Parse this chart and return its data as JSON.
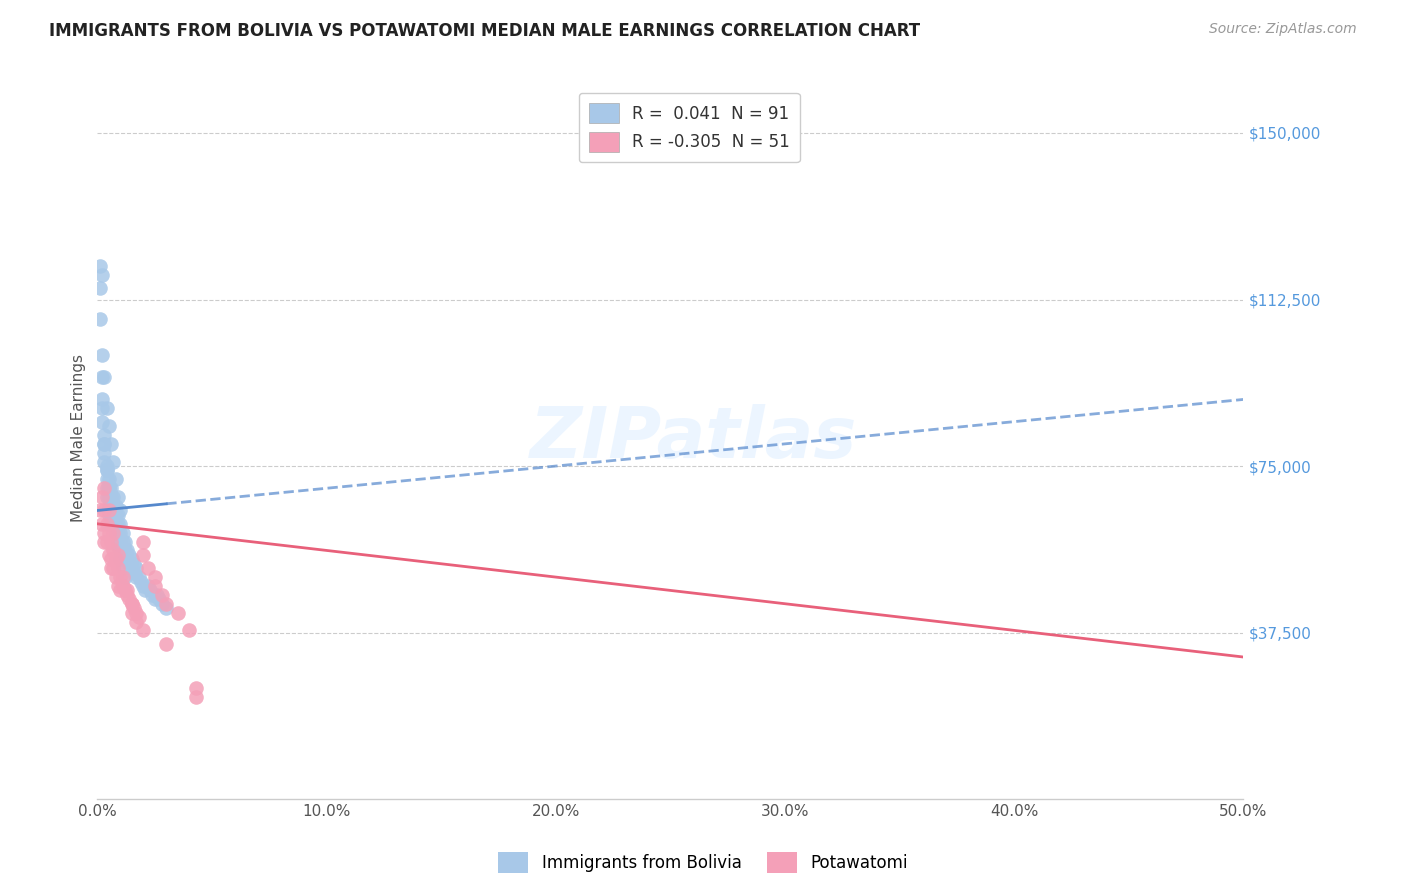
{
  "title": "IMMIGRANTS FROM BOLIVIA VS POTAWATOMI MEDIAN MALE EARNINGS CORRELATION CHART",
  "source": "Source: ZipAtlas.com",
  "ylabel": "Median Male Earnings",
  "ytick_labels": [
    "$37,500",
    "$75,000",
    "$112,500",
    "$150,000"
  ],
  "ytick_values": [
    37500,
    75000,
    112500,
    150000
  ],
  "ylim": [
    0,
    162500
  ],
  "xlim": [
    0.0,
    0.5
  ],
  "xticks": [
    0.0,
    0.1,
    0.2,
    0.3,
    0.4,
    0.5
  ],
  "xtick_labels": [
    "0.0%",
    "10.0%",
    "20.0%",
    "30.0%",
    "40.0%",
    "50.0%"
  ],
  "legend1_r": "0.041",
  "legend1_n": "91",
  "legend2_r": "-0.305",
  "legend2_n": "51",
  "series1_name": "Immigrants from Bolivia",
  "series2_name": "Potawatomi",
  "color1": "#a8c8e8",
  "color2": "#f4a0b8",
  "trend1_color": "#5588cc",
  "trend2_color": "#e8607a",
  "watermark": "ZIPatlas",
  "bolivia_x": [
    0.001,
    0.001,
    0.002,
    0.002,
    0.002,
    0.002,
    0.003,
    0.003,
    0.003,
    0.003,
    0.004,
    0.004,
    0.004,
    0.004,
    0.004,
    0.005,
    0.005,
    0.005,
    0.005,
    0.005,
    0.005,
    0.006,
    0.006,
    0.006,
    0.006,
    0.006,
    0.007,
    0.007,
    0.007,
    0.007,
    0.008,
    0.008,
    0.008,
    0.008,
    0.009,
    0.009,
    0.009,
    0.009,
    0.01,
    0.01,
    0.01,
    0.01,
    0.011,
    0.011,
    0.011,
    0.012,
    0.012,
    0.012,
    0.013,
    0.013,
    0.014,
    0.014,
    0.015,
    0.015,
    0.016,
    0.016,
    0.017,
    0.017,
    0.018,
    0.019,
    0.02,
    0.021,
    0.022,
    0.023,
    0.024,
    0.025,
    0.026,
    0.027,
    0.028,
    0.03,
    0.001,
    0.002,
    0.003,
    0.004,
    0.005,
    0.006,
    0.007,
    0.008,
    0.009,
    0.01,
    0.002,
    0.003,
    0.004,
    0.005,
    0.006,
    0.007,
    0.008,
    0.009,
    0.01,
    0.011,
    0.012
  ],
  "bolivia_y": [
    115000,
    108000,
    100000,
    95000,
    90000,
    85000,
    82000,
    80000,
    78000,
    76000,
    75000,
    74000,
    72000,
    70000,
    68000,
    72000,
    70000,
    68000,
    66000,
    64000,
    62000,
    70000,
    68000,
    66000,
    64000,
    62000,
    68000,
    66000,
    64000,
    62000,
    66000,
    64000,
    62000,
    60000,
    64000,
    62000,
    60000,
    58000,
    62000,
    60000,
    58000,
    56000,
    60000,
    58000,
    56000,
    58000,
    56000,
    54000,
    56000,
    54000,
    55000,
    53000,
    54000,
    52000,
    53000,
    51000,
    52000,
    50000,
    50000,
    49000,
    48000,
    47000,
    48000,
    47000,
    46000,
    45000,
    46000,
    45000,
    44000,
    43000,
    120000,
    118000,
    95000,
    88000,
    84000,
    80000,
    76000,
    72000,
    68000,
    65000,
    88000,
    80000,
    74000,
    70000,
    66000,
    63000,
    60000,
    57000,
    54000,
    52000,
    50000
  ],
  "potawatomi_x": [
    0.001,
    0.002,
    0.002,
    0.003,
    0.003,
    0.004,
    0.004,
    0.005,
    0.005,
    0.006,
    0.006,
    0.007,
    0.007,
    0.008,
    0.008,
    0.009,
    0.009,
    0.01,
    0.011,
    0.012,
    0.013,
    0.014,
    0.015,
    0.016,
    0.017,
    0.018,
    0.02,
    0.022,
    0.025,
    0.028,
    0.03,
    0.035,
    0.04,
    0.043,
    0.003,
    0.005,
    0.007,
    0.009,
    0.011,
    0.013,
    0.015,
    0.017,
    0.02,
    0.025,
    0.003,
    0.006,
    0.01,
    0.015,
    0.02,
    0.03,
    0.043
  ],
  "potawatomi_y": [
    65000,
    68000,
    62000,
    65000,
    60000,
    62000,
    58000,
    60000,
    55000,
    58000,
    54000,
    56000,
    52000,
    54000,
    50000,
    52000,
    48000,
    50000,
    48000,
    47000,
    46000,
    45000,
    44000,
    43000,
    42000,
    41000,
    58000,
    52000,
    48000,
    46000,
    44000,
    42000,
    38000,
    25000,
    70000,
    65000,
    60000,
    55000,
    50000,
    47000,
    44000,
    40000,
    55000,
    50000,
    58000,
    52000,
    47000,
    42000,
    38000,
    35000,
    23000
  ]
}
